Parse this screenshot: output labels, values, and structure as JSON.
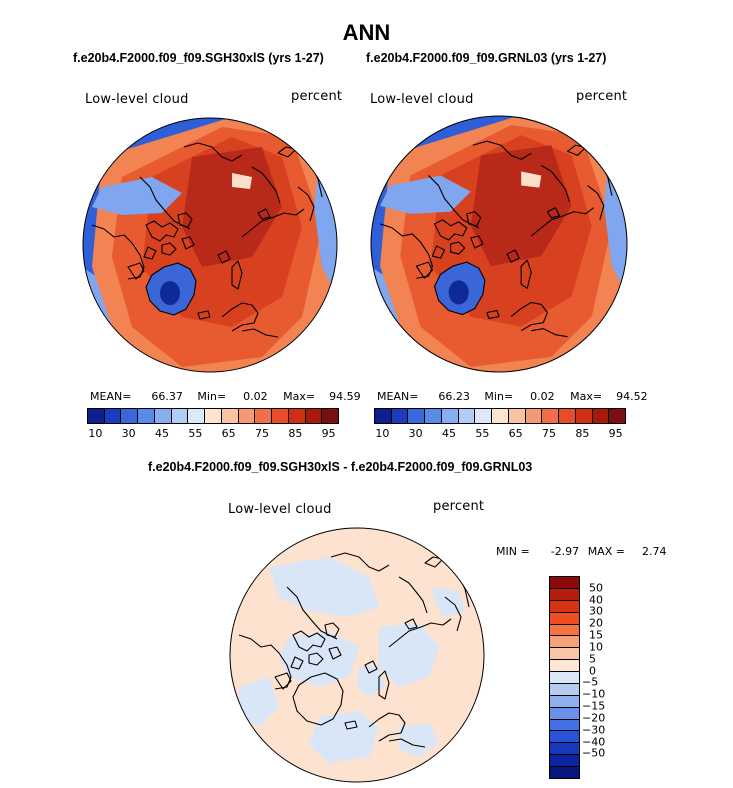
{
  "title": "ANN",
  "panels": [
    {
      "title": "f.e20b4.F2000.f09_f09.SGH30xlS (yrs 1-27)",
      "variable": "Low-level cloud",
      "units": "percent",
      "stats": {
        "mean_label": "MEAN=",
        "mean": "66.37",
        "min_label": "Min=",
        "min": "0.02",
        "max_label": "Max=",
        "max": "94.59"
      }
    },
    {
      "title": "f.e20b4.F2000.f09_f09.GRNL03 (yrs 1-27)",
      "variable": "Low-level cloud",
      "units": "percent",
      "stats": {
        "mean_label": "MEAN=",
        "mean": "66.23",
        "min_label": "Min=",
        "min": "0.02",
        "max_label": "Max=",
        "max": "94.52"
      }
    }
  ],
  "abs_colorbar": {
    "colors": [
      "#0c1f8a",
      "#1c3cbf",
      "#3868d8",
      "#5b8ae6",
      "#86aef0",
      "#b2ccf4",
      "#dbe8f8",
      "#fde3d2",
      "#f9c2a3",
      "#f59a74",
      "#f06f48",
      "#e64b2a",
      "#cc2f15",
      "#a8190c",
      "#7a0f0f"
    ],
    "tick_labels": [
      "10",
      "30",
      "45",
      "55",
      "65",
      "75",
      "85",
      "95"
    ]
  },
  "diff_panel": {
    "title": "f.e20b4.F2000.f09_f09.SGH30xlS - f.e20b4.F2000.f09_f09.GRNL03",
    "variable": "Low-level cloud",
    "units": "percent",
    "stats": {
      "min_label": "MIN =",
      "min": "-2.97",
      "max_label": "MAX =",
      "max": "2.74"
    }
  },
  "diff_colorbar": {
    "colors": [
      "#8b0a0a",
      "#b51d0c",
      "#d8330f",
      "#ef4e22",
      "#f5743f",
      "#f7a176",
      "#f9c5a5",
      "#fde6d4",
      "#dbe7f8",
      "#b5cdf3",
      "#8eb0ee",
      "#6a91ea",
      "#4470e4",
      "#2a52d6",
      "#1838bd",
      "#0d24a0",
      "#0a1680"
    ],
    "tick_labels": [
      "50",
      "40",
      "30",
      "20",
      "15",
      "10",
      "5",
      "0",
      "−5",
      "−10",
      "−15",
      "−20",
      "−30",
      "−40",
      "−50"
    ]
  },
  "map_colors": {
    "ocean_low": "#2f5fd6",
    "ocean_mid": "#7fa6ee",
    "pale": "#fbe1cc",
    "orange": "#f28454",
    "red_orange": "#e85a30",
    "red": "#d8411f",
    "deep_red": "#b8291a",
    "greenland_blue": "#3a66d8",
    "greenland_dark": "#0e2a96",
    "diff_peach": "#fde3cf",
    "diff_blue": "#d9e6f8",
    "coast": "#000000"
  }
}
